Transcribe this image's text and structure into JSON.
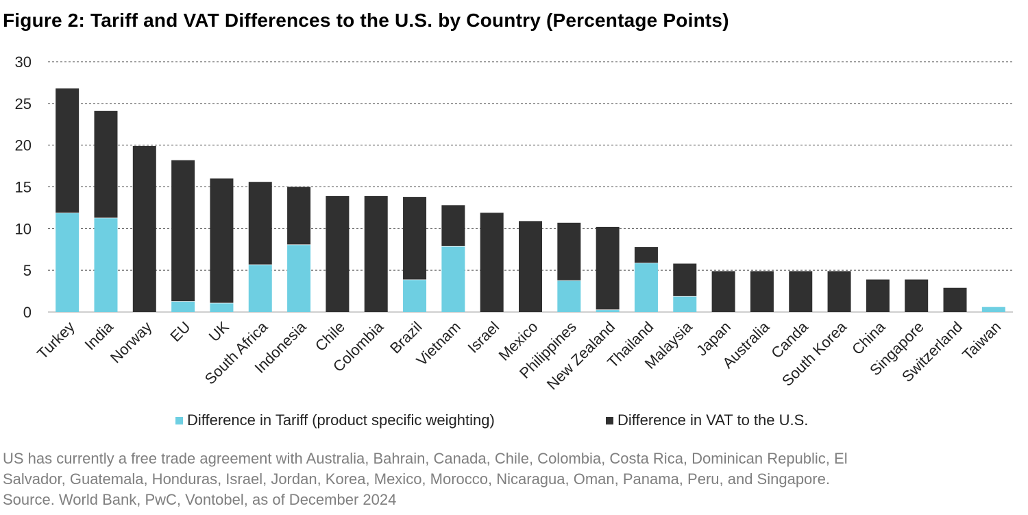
{
  "title": "Figure 2: Tariff and VAT Differences to the U.S. by Country (Percentage Points)",
  "chart_data": {
    "type": "bar",
    "stacked": true,
    "categories": [
      "Turkey",
      "India",
      "Norway",
      "EU",
      "UK",
      "South Africa",
      "Indonesia",
      "Chile",
      "Colombia",
      "Brazil",
      "Vietnam",
      "Israel",
      "Mexico",
      "Philippines",
      "New Zealand",
      "Thailand",
      "Malaysia",
      "Japan",
      "Australia",
      "Canda",
      "South Korea",
      "China",
      "Singapore",
      "Switzerland",
      "Taiwan"
    ],
    "series": [
      {
        "name": "Difference in Tariff (product specific weighting)",
        "color": "#6ecfe2",
        "values": [
          11.9,
          11.3,
          0,
          1.3,
          1.1,
          5.7,
          8.1,
          0,
          0,
          3.9,
          7.9,
          0,
          0,
          3.8,
          0.3,
          5.9,
          1.9,
          0,
          0,
          0,
          0,
          0,
          0,
          0,
          0.6
        ]
      },
      {
        "name": "Difference in VAT to the U.S.",
        "color": "#303030",
        "values": [
          14.9,
          12.8,
          19.9,
          16.9,
          14.9,
          9.9,
          6.9,
          13.9,
          13.9,
          9.9,
          4.9,
          11.9,
          10.9,
          6.9,
          9.9,
          1.9,
          3.9,
          4.9,
          4.9,
          4.9,
          4.9,
          3.9,
          3.9,
          2.9,
          0
        ]
      }
    ],
    "ylim": [
      0,
      30
    ],
    "yticks": [
      0,
      5,
      10,
      15,
      20,
      25,
      30
    ],
    "grid": "dashed horizontal",
    "legend_position": "bottom",
    "xlabel": "",
    "ylabel": ""
  },
  "notes": [
    "US has currently a free trade agreement with Australia, Bahrain, Canada, Chile, Colombia, Costa Rica, Dominican Republic, El",
    "Salvador, Guatemala, Honduras, Israel, Jordan, Korea, Mexico, Morocco, Nicaragua, Oman, Panama, Peru, and Singapore.",
    "Source. World Bank, PwC, Vontobel, as of December 2024"
  ]
}
